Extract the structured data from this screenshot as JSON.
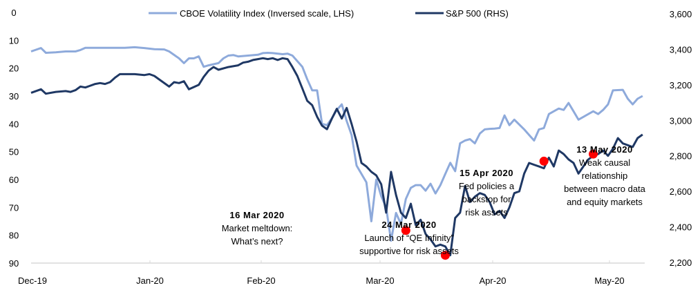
{
  "chart_data": {
    "type": "line",
    "title": "",
    "xlabel": "",
    "ylabel_left": "CBOE Volatility Index (inversed scale)",
    "ylabel_right": "S&P 500",
    "x_domain": [
      0,
      125
    ],
    "x_ticks": [
      {
        "label": "Dec-19",
        "x": 0
      },
      {
        "label": "Jan-20",
        "x": 24
      },
      {
        "label": "Feb-20",
        "x": 47
      },
      {
        "label": "Mar-20",
        "x": 71
      },
      {
        "label": "Apr-20",
        "x": 94
      },
      {
        "label": "May-20",
        "x": 117
      }
    ],
    "y_left": {
      "min": 0,
      "max": 90,
      "inverted": true,
      "ticks": [
        0,
        10,
        20,
        30,
        40,
        50,
        60,
        70,
        80,
        90
      ]
    },
    "y_right": {
      "min": 2200,
      "max": 3600,
      "ticks": [
        "2,200",
        "2,400",
        "2,600",
        "2,800",
        "3,000",
        "3,200",
        "3,400",
        "3,600"
      ],
      "tick_values": [
        2200,
        2400,
        2600,
        2800,
        3000,
        3200,
        3400,
        3600
      ]
    },
    "grid": false,
    "legend": {
      "position": "top-center",
      "entries": [
        "CBOE Volatility Index (Inversed scale, LHS)",
        "S&P 500 (RHS)"
      ]
    },
    "series": [
      {
        "name": "CBOE Volatility Index (Inversed scale, LHS)",
        "axis": "left",
        "color": "#8eaadb",
        "points": [
          [
            0,
            14.0
          ],
          [
            2,
            12.8
          ],
          [
            3,
            14.5
          ],
          [
            5,
            14.3
          ],
          [
            7,
            14.0
          ],
          [
            9,
            14.0
          ],
          [
            10,
            13.5
          ],
          [
            11,
            12.7
          ],
          [
            13,
            12.7
          ],
          [
            15,
            12.7
          ],
          [
            17,
            12.7
          ],
          [
            19,
            12.7
          ],
          [
            21,
            12.5
          ],
          [
            23,
            12.8
          ],
          [
            25,
            13.2
          ],
          [
            27,
            13.3
          ],
          [
            28,
            14.0
          ],
          [
            30,
            16.5
          ],
          [
            31,
            18.2
          ],
          [
            32,
            16.5
          ],
          [
            33,
            16.5
          ],
          [
            34,
            15.8
          ],
          [
            35,
            19.5
          ],
          [
            36,
            19.0
          ],
          [
            38,
            18.2
          ],
          [
            39,
            16.5
          ],
          [
            40,
            15.5
          ],
          [
            41,
            15.3
          ],
          [
            42,
            15.8
          ],
          [
            44,
            15.5
          ],
          [
            46,
            15.2
          ],
          [
            47,
            14.6
          ],
          [
            48,
            14.5
          ],
          [
            49,
            14.6
          ],
          [
            51,
            15.0
          ],
          [
            52,
            14.8
          ],
          [
            53,
            15.5
          ],
          [
            55,
            19.5
          ],
          [
            56,
            24.0
          ],
          [
            57,
            28.0
          ],
          [
            58,
            28.0
          ],
          [
            59,
            40.0
          ],
          [
            60,
            40.5
          ],
          [
            61,
            38.0
          ],
          [
            62,
            35.0
          ],
          [
            63,
            33.0
          ],
          [
            64,
            39.0
          ],
          [
            65,
            44.0
          ],
          [
            66,
            55.0
          ],
          [
            67,
            58.0
          ],
          [
            68,
            61.0
          ],
          [
            69,
            75.0
          ],
          [
            70,
            60.0
          ],
          [
            71,
            66.0
          ],
          [
            72,
            70.0
          ],
          [
            73,
            82.0
          ],
          [
            74,
            72.0
          ],
          [
            75,
            76.0
          ],
          [
            76,
            67.0
          ],
          [
            77,
            63.0
          ],
          [
            78,
            62.0
          ],
          [
            79,
            62.0
          ],
          [
            80,
            64.0
          ],
          [
            81,
            61.5
          ],
          [
            82,
            65.0
          ],
          [
            83,
            62.0
          ],
          [
            84,
            58.0
          ],
          [
            85,
            54.0
          ],
          [
            86,
            57.0
          ],
          [
            87,
            47.0
          ],
          [
            88,
            46.0
          ],
          [
            89,
            45.5
          ],
          [
            90,
            47.0
          ],
          [
            91,
            43.5
          ],
          [
            92,
            42.0
          ],
          [
            93,
            41.8
          ],
          [
            94,
            41.7
          ],
          [
            95,
            41.5
          ],
          [
            96,
            37.0
          ],
          [
            97,
            40.5
          ],
          [
            98,
            38.5
          ],
          [
            100,
            42.0
          ],
          [
            101,
            44.0
          ],
          [
            102,
            46.0
          ],
          [
            103,
            42.0
          ],
          [
            104,
            41.5
          ],
          [
            105,
            36.5
          ],
          [
            106,
            35.5
          ],
          [
            107,
            34.5
          ],
          [
            108,
            35.0
          ],
          [
            109,
            32.5
          ],
          [
            110,
            35.5
          ],
          [
            111,
            38.5
          ],
          [
            112,
            37.5
          ],
          [
            113,
            36.5
          ],
          [
            114,
            35.5
          ],
          [
            115,
            36.5
          ],
          [
            116,
            35.0
          ],
          [
            117,
            33.0
          ],
          [
            118,
            28.0
          ],
          [
            120,
            27.8
          ],
          [
            121,
            31.0
          ],
          [
            122,
            33.0
          ],
          [
            123,
            31.0
          ],
          [
            124,
            30.0
          ]
        ]
      },
      {
        "name": "S&P 500 (RHS)",
        "axis": "right",
        "color": "#1f3864",
        "points": [
          [
            0,
            3155
          ],
          [
            2,
            3175
          ],
          [
            3,
            3150
          ],
          [
            5,
            3160
          ],
          [
            7,
            3165
          ],
          [
            8,
            3160
          ],
          [
            9,
            3170
          ],
          [
            10,
            3190
          ],
          [
            11,
            3185
          ],
          [
            13,
            3205
          ],
          [
            14,
            3210
          ],
          [
            15,
            3205
          ],
          [
            16,
            3215
          ],
          [
            17,
            3240
          ],
          [
            18,
            3260
          ],
          [
            21,
            3260
          ],
          [
            23,
            3255
          ],
          [
            24,
            3260
          ],
          [
            25,
            3250
          ],
          [
            26,
            3230
          ],
          [
            28,
            3190
          ],
          [
            29,
            3215
          ],
          [
            30,
            3210
          ],
          [
            31,
            3220
          ],
          [
            32,
            3175
          ],
          [
            34,
            3200
          ],
          [
            35,
            3245
          ],
          [
            36,
            3280
          ],
          [
            37,
            3300
          ],
          [
            38,
            3285
          ],
          [
            40,
            3300
          ],
          [
            42,
            3310
          ],
          [
            43,
            3325
          ],
          [
            44,
            3330
          ],
          [
            45,
            3340
          ],
          [
            46,
            3345
          ],
          [
            47,
            3350
          ],
          [
            48,
            3345
          ],
          [
            49,
            3350
          ],
          [
            50,
            3340
          ],
          [
            51,
            3350
          ],
          [
            52,
            3345
          ],
          [
            53,
            3300
          ],
          [
            54,
            3250
          ],
          [
            55,
            3180
          ],
          [
            56,
            3110
          ],
          [
            57,
            3085
          ],
          [
            58,
            3020
          ],
          [
            59,
            2970
          ],
          [
            60,
            2950
          ],
          [
            61,
            3010
          ],
          [
            62,
            3065
          ],
          [
            63,
            3010
          ],
          [
            64,
            3070
          ],
          [
            65,
            2980
          ],
          [
            66,
            2880
          ],
          [
            67,
            2760
          ],
          [
            68,
            2740
          ],
          [
            69,
            2710
          ],
          [
            70,
            2690
          ],
          [
            71,
            2640
          ],
          [
            72,
            2480
          ],
          [
            73,
            2710
          ],
          [
            74,
            2580
          ],
          [
            75,
            2480
          ],
          [
            76,
            2450
          ],
          [
            77,
            2530
          ],
          [
            78,
            2410
          ],
          [
            79,
            2440
          ],
          [
            80,
            2360
          ],
          [
            81,
            2330
          ],
          [
            82,
            2290
          ],
          [
            83,
            2300
          ],
          [
            84,
            2290
          ],
          [
            85,
            2240
          ],
          [
            86,
            2450
          ],
          [
            87,
            2480
          ],
          [
            88,
            2630
          ],
          [
            89,
            2540
          ],
          [
            90,
            2570
          ],
          [
            91,
            2590
          ],
          [
            92,
            2580
          ],
          [
            93,
            2540
          ],
          [
            94,
            2470
          ],
          [
            95,
            2490
          ],
          [
            96,
            2450
          ],
          [
            97,
            2510
          ],
          [
            98,
            2590
          ],
          [
            99,
            2600
          ],
          [
            100,
            2700
          ],
          [
            101,
            2760
          ],
          [
            102,
            2750
          ],
          [
            103,
            2740
          ],
          [
            104,
            2730
          ],
          [
            105,
            2790
          ],
          [
            106,
            2740
          ],
          [
            107,
            2830
          ],
          [
            108,
            2810
          ],
          [
            109,
            2780
          ],
          [
            110,
            2760
          ],
          [
            111,
            2700
          ],
          [
            112,
            2740
          ],
          [
            113,
            2780
          ],
          [
            114,
            2800
          ],
          [
            115,
            2810
          ],
          [
            116,
            2830
          ],
          [
            117,
            2800
          ],
          [
            118,
            2840
          ],
          [
            119,
            2900
          ],
          [
            120,
            2870
          ],
          [
            121,
            2860
          ],
          [
            122,
            2850
          ],
          [
            123,
            2900
          ],
          [
            124,
            2920
          ]
        ]
      }
    ],
    "annotations": [
      {
        "date": "16 Mar 2020",
        "text_lines": [
          "Market meltdown:",
          "What’s next?"
        ],
        "marker_x": 76,
        "marker_axis_value": 2380
      },
      {
        "date": "24 Mar 2020",
        "text_lines": [
          "Launch of “QE Infinity”",
          "supportive for risk assets"
        ],
        "marker_x": 84,
        "marker_axis_value": 2240
      },
      {
        "date": "15 Apr 2020",
        "text_lines": [
          "Fed policies a",
          "backstop for",
          "risk assets"
        ],
        "marker_x": 104,
        "marker_axis_value": 2770
      },
      {
        "date": "13 May 2020",
        "text_lines": [
          "Weak causal",
          "relationship",
          "between macro data",
          "and equity markets"
        ],
        "marker_x": 114,
        "marker_axis_value": 2810
      }
    ],
    "marker_color": "#ff0000"
  }
}
